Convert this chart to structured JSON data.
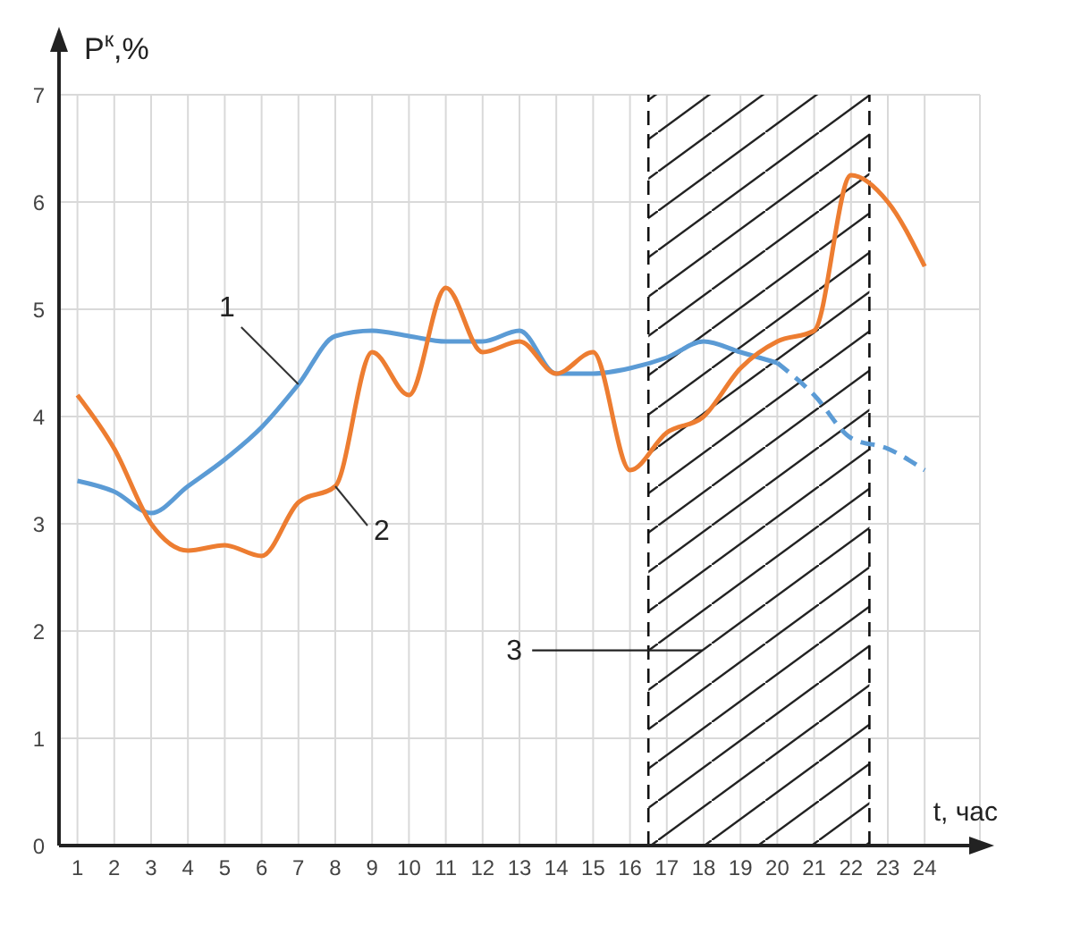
{
  "chart_data": {
    "type": "line",
    "xlabel": "t, час",
    "ylabel": "P$^{к}$,%",
    "x": [
      1,
      2,
      3,
      4,
      5,
      6,
      7,
      8,
      9,
      10,
      11,
      12,
      13,
      14,
      15,
      16,
      17,
      18,
      19,
      20,
      21,
      22,
      23,
      24
    ],
    "series": [
      {
        "name": "1",
        "color": "#5b9bd5",
        "values": [
          3.4,
          3.3,
          3.1,
          3.35,
          3.6,
          3.9,
          4.3,
          4.75,
          4.8,
          4.75,
          4.7,
          4.7,
          4.8,
          4.4,
          4.4,
          4.45,
          4.55,
          4.7,
          4.6,
          4.5,
          null,
          null,
          null,
          null
        ]
      },
      {
        "color": "#5b9bd5",
        "line_style": "dashed",
        "values": [
          null,
          null,
          null,
          null,
          null,
          null,
          null,
          null,
          null,
          null,
          null,
          null,
          null,
          null,
          null,
          null,
          null,
          null,
          null,
          4.5,
          4.2,
          3.8,
          3.7,
          3.5
        ]
      },
      {
        "name": "2",
        "color": "#ed7d31",
        "values": [
          4.2,
          3.7,
          3.0,
          2.75,
          2.8,
          2.7,
          3.2,
          3.35,
          4.6,
          4.2,
          5.2,
          4.6,
          4.7,
          4.4,
          4.6,
          3.5,
          3.85,
          4.0,
          4.45,
          4.7,
          4.8,
          6.25,
          6.0,
          5.4
        ]
      }
    ],
    "bands": [
      {
        "axis": "x",
        "from": 16.5,
        "to": 22.5,
        "label": "3"
      }
    ],
    "ref_lines": [
      {
        "axis": "x",
        "value": 16.5,
        "color": "#111111",
        "line_style": "dashed"
      },
      {
        "axis": "x",
        "value": 22.5,
        "color": "#111111",
        "line_style": "dashed"
      }
    ],
    "xlim": [
      0.5,
      25.5
    ],
    "xticks": [
      1,
      2,
      3,
      4,
      5,
      6,
      7,
      8,
      9,
      10,
      11,
      12,
      13,
      14,
      15,
      16,
      17,
      18,
      19,
      20,
      21,
      22,
      23,
      24
    ],
    "ylim": [
      0,
      7
    ],
    "yticks": [
      0,
      1,
      2,
      3,
      4,
      5,
      6,
      7
    ],
    "grid": true,
    "marker": "none",
    "line_style": "solid"
  }
}
